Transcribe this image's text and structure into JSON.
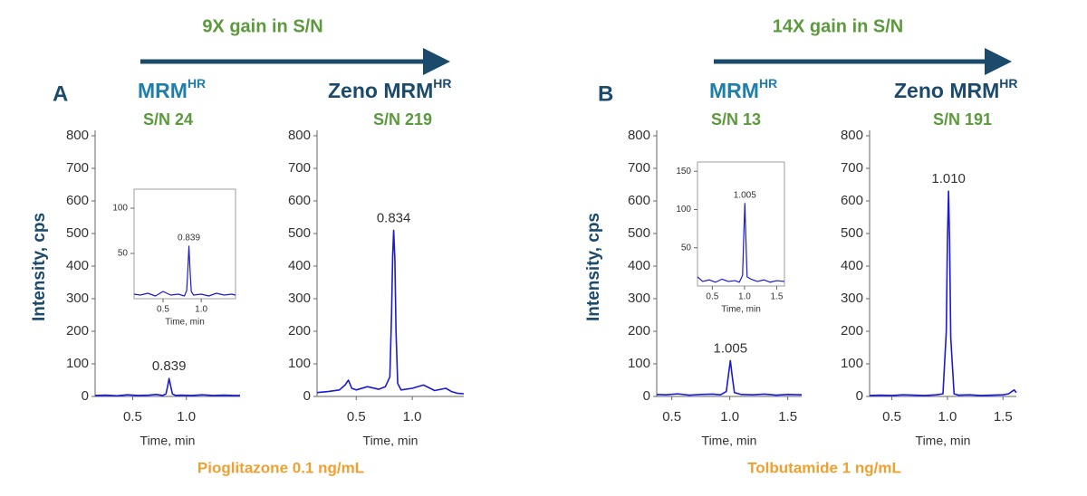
{
  "panels": [
    {
      "letter": "A",
      "gain": "9X gain in S/N",
      "left_method": "MRM",
      "left_sup": "HR",
      "left_sn": "S/N 24",
      "right_method": "Zeno MRM",
      "right_sup": "HR",
      "right_sn": "S/N 219",
      "ylabel": "Intensity, cps",
      "compound": "Pioglitazone 0.1 ng/mL"
    },
    {
      "letter": "B",
      "gain": "14X gain in S/N",
      "left_method": "MRM",
      "left_sup": "HR",
      "left_sn": "S/N 13",
      "right_method": "Zeno MRM",
      "right_sup": "HR",
      "right_sn": "S/N 191",
      "ylabel": "Intensity, cps",
      "compound": "Tolbutamide 1 ng/mL"
    }
  ],
  "chart_data": [
    {
      "type": "line",
      "xlabel": "Time, min",
      "annotation": "0.839",
      "color": "#1a1ad8",
      "xlim": [
        0.15,
        1.5
      ],
      "xticks": [
        0.5,
        {
          "value": 1,
          "label": "1.0"
        }
      ],
      "ylim": [
        0,
        800
      ],
      "yticks": [
        0,
        100,
        200,
        300,
        400,
        500,
        600,
        700,
        800
      ],
      "x": [
        0.15,
        0.25,
        0.35,
        0.45,
        0.55,
        0.65,
        0.72,
        0.78,
        0.81,
        0.825,
        0.839,
        0.855,
        0.87,
        0.9,
        0.95,
        1.05,
        1.15,
        1.25,
        1.35,
        1.45,
        1.5
      ],
      "values": [
        3,
        4,
        2,
        5,
        3,
        4,
        6,
        3,
        8,
        30,
        55,
        30,
        8,
        3,
        4,
        3,
        5,
        3,
        4,
        3,
        3
      ]
    },
    {
      "type": "line",
      "xlabel": "Time, min",
      "annotation": "0.839",
      "color": "#1a1ad8",
      "xlim": [
        0.12,
        1.45
      ],
      "xticks": [
        0.5,
        {
          "value": 1,
          "label": "1.0"
        }
      ],
      "ylim": [
        0,
        115
      ],
      "yticks": [
        50,
        100
      ],
      "x": [
        0.12,
        0.2,
        0.3,
        0.4,
        0.5,
        0.6,
        0.7,
        0.78,
        0.81,
        0.825,
        0.839,
        0.855,
        0.87,
        0.9,
        1.0,
        1.1,
        1.2,
        1.3,
        1.4,
        1.45
      ],
      "values": [
        5,
        4,
        6,
        3,
        8,
        4,
        5,
        3,
        9,
        32,
        58,
        30,
        8,
        4,
        5,
        3,
        6,
        4,
        5,
        4
      ]
    },
    {
      "type": "line",
      "xlabel": "Time, min",
      "annotation": "0.834",
      "color": "#1a1ad8",
      "xlim": [
        0.15,
        1.46
      ],
      "xticks": [
        0.5,
        {
          "value": 1,
          "label": "1.0"
        }
      ],
      "ylim": [
        0,
        800
      ],
      "yticks": [
        0,
        100,
        200,
        300,
        400,
        500,
        600,
        700,
        800
      ],
      "x": [
        0.15,
        0.25,
        0.35,
        0.4,
        0.43,
        0.46,
        0.5,
        0.6,
        0.7,
        0.76,
        0.8,
        0.815,
        0.825,
        0.834,
        0.845,
        0.855,
        0.87,
        0.9,
        1.0,
        1.1,
        1.2,
        1.3,
        1.35,
        1.4,
        1.46
      ],
      "values": [
        12,
        15,
        20,
        35,
        50,
        25,
        20,
        30,
        22,
        30,
        60,
        250,
        430,
        510,
        420,
        200,
        40,
        20,
        25,
        35,
        18,
        25,
        15,
        10,
        8
      ]
    },
    {
      "type": "line",
      "xlabel": "Time, min",
      "annotation": "1.005",
      "color": "#1a1ad8",
      "xlim": [
        0.37,
        1.62
      ],
      "xticks": [
        0.5,
        {
          "value": 1,
          "label": "1.0"
        },
        1.5
      ],
      "ylim": [
        0,
        800
      ],
      "yticks": [
        0,
        100,
        200,
        300,
        400,
        500,
        600,
        700,
        800
      ],
      "x": [
        0.37,
        0.45,
        0.55,
        0.65,
        0.75,
        0.85,
        0.92,
        0.97,
        0.99,
        1.005,
        1.02,
        1.04,
        1.1,
        1.2,
        1.3,
        1.4,
        1.5,
        1.62
      ],
      "values": [
        6,
        5,
        8,
        4,
        6,
        7,
        5,
        15,
        70,
        110,
        65,
        12,
        6,
        5,
        7,
        4,
        6,
        5
      ]
    },
    {
      "type": "line",
      "xlabel": "Time, min",
      "annotation": "1.005",
      "color": "#1a1ad8",
      "xlim": [
        0.27,
        1.62
      ],
      "xticks": [
        0.5,
        {
          "value": 1,
          "label": "1.0"
        },
        1.5
      ],
      "ylim": [
        0,
        155
      ],
      "yticks": [
        50,
        100,
        150
      ],
      "x": [
        0.27,
        0.35,
        0.45,
        0.55,
        0.65,
        0.75,
        0.85,
        0.92,
        0.97,
        0.99,
        1.005,
        1.02,
        1.04,
        1.1,
        1.2,
        1.3,
        1.4,
        1.5,
        1.62
      ],
      "values": [
        12,
        6,
        8,
        5,
        9,
        6,
        7,
        5,
        14,
        70,
        108,
        65,
        12,
        9,
        6,
        8,
        5,
        7,
        6
      ]
    },
    {
      "type": "line",
      "xlabel": "Time, min",
      "annotation": "1.010",
      "color": "#1a1ad8",
      "xlim": [
        0.3,
        1.62
      ],
      "xticks": [
        0.5,
        {
          "value": 1,
          "label": "1.0"
        },
        1.5
      ],
      "ylim": [
        0,
        800
      ],
      "yticks": [
        0,
        100,
        200,
        300,
        400,
        500,
        600,
        700,
        800
      ],
      "x": [
        0.3,
        0.4,
        0.5,
        0.6,
        0.7,
        0.8,
        0.9,
        0.96,
        0.99,
        1.0,
        1.01,
        1.02,
        1.03,
        1.06,
        1.1,
        1.2,
        1.3,
        1.4,
        1.5,
        1.55,
        1.6,
        1.62
      ],
      "values": [
        3,
        4,
        3,
        5,
        4,
        3,
        5,
        8,
        200,
        480,
        630,
        470,
        180,
        8,
        4,
        5,
        3,
        4,
        5,
        8,
        20,
        12
      ]
    }
  ]
}
